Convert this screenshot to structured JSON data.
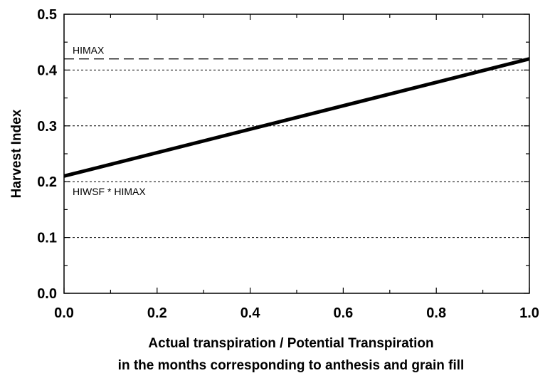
{
  "chart_data": {
    "type": "line",
    "title": "",
    "xlabel_lines": [
      "Actual transpiration / Potential Transpiration",
      "in the months corresponding to anthesis and grain fill"
    ],
    "ylabel": "Harvest Index",
    "xlim": [
      0.0,
      1.0
    ],
    "ylim": [
      0.0,
      0.5
    ],
    "x_ticks": [
      "0.0",
      "0.2",
      "0.4",
      "0.6",
      "0.8",
      "1.0"
    ],
    "y_ticks": [
      "0.0",
      "0.1",
      "0.2",
      "0.3",
      "0.4",
      "0.5"
    ],
    "grid": "horizontal dotted",
    "series": [
      {
        "x": [
          0.0,
          1.0
        ],
        "y": [
          0.21,
          0.42
        ],
        "style": "solid-thick",
        "color": "#000000"
      }
    ],
    "reference_lines": [
      {
        "y": 0.42,
        "style": "dashed",
        "label": "HIMAX"
      },
      {
        "y": 0.2,
        "style": "none",
        "label": "HIWSF * HIMAX"
      }
    ]
  }
}
